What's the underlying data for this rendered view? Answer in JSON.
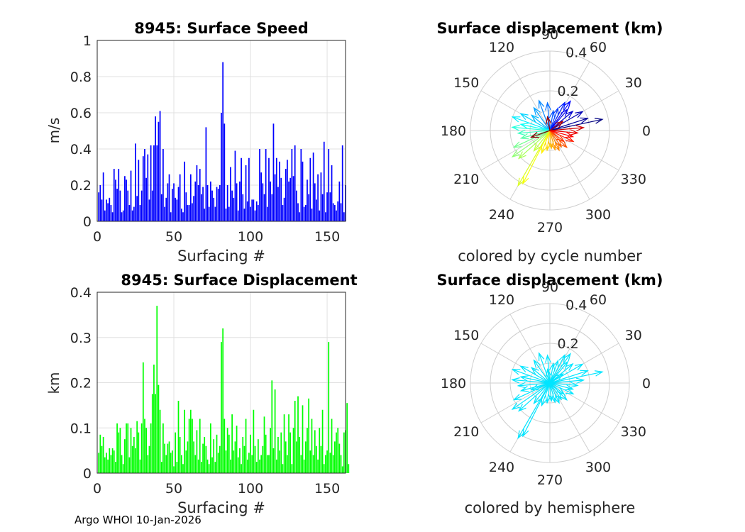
{
  "footer": "Argo WHOI 10-Jan-2026",
  "chart_data": [
    {
      "type": "bar",
      "title": "8945: Surface Speed",
      "xlabel": "Surfacing #",
      "ylabel": "m/s",
      "xlim": [
        0,
        162
      ],
      "ylim": [
        0,
        1
      ],
      "xticks": [
        "0",
        "50",
        "100",
        "150"
      ],
      "yticks": [
        "0",
        "0.2",
        "0.4",
        "0.6",
        "0.8",
        "1"
      ],
      "color": "#0000ff",
      "values": [
        0.16,
        0.2,
        0.12,
        0.27,
        0.06,
        0.12,
        0.1,
        0.13,
        0.09,
        0.05,
        0.29,
        0.23,
        0.18,
        0.29,
        0.17,
        0.05,
        0.06,
        0.25,
        0.23,
        0.17,
        0.09,
        0.28,
        0.06,
        0.08,
        0.43,
        0.14,
        0.34,
        0.09,
        0.17,
        0.36,
        0.4,
        0.24,
        0.37,
        0.12,
        0.42,
        0.17,
        0.42,
        0.58,
        0.42,
        0.55,
        0.61,
        0.15,
        0.4,
        0.08,
        0.13,
        0.21,
        0.26,
        0.05,
        0.18,
        0.21,
        0.13,
        0.12,
        0.19,
        0.26,
        0.07,
        0.05,
        0.33,
        0.16,
        0.09,
        0.09,
        0.26,
        0.1,
        0.14,
        0.22,
        0.31,
        0.2,
        0.29,
        0.15,
        0.19,
        0.07,
        0.52,
        0.2,
        0.08,
        0.22,
        0.17,
        0.13,
        0.08,
        0.19,
        0.18,
        0.2,
        0.6,
        0.88,
        0.54,
        0.07,
        0.2,
        0.08,
        0.3,
        0.17,
        0.13,
        0.39,
        0.21,
        0.06,
        0.22,
        0.35,
        0.15,
        0.07,
        0.31,
        0.11,
        0.35,
        0.08,
        0.12,
        0.12,
        0.06,
        0.11,
        0.09,
        0.4,
        0.27,
        0.21,
        0.15,
        0.4,
        0.08,
        0.35,
        0.22,
        0.15,
        0.54,
        0.26,
        0.35,
        0.19,
        0.33,
        0.24,
        0.09,
        0.13,
        0.29,
        0.34,
        0.22,
        0.24,
        0.4,
        0.25,
        0.42,
        0.17,
        0.1,
        0.05,
        0.4,
        0.33,
        0.08,
        0.09,
        0.23,
        0.15,
        0.35,
        0.07,
        0.38,
        0.21,
        0.12,
        0.26,
        0.06,
        0.27,
        0.15,
        0.44,
        0.05,
        0.16,
        0.4,
        0.16,
        0.31,
        0.1,
        0.09,
        0.06,
        0.11,
        0.22,
        0.1,
        0.42,
        0.05,
        0.2
      ]
    },
    {
      "type": "bar",
      "title": "8945: Surface Displacement",
      "xlabel": "Surfacing #",
      "ylabel": "km",
      "xlim": [
        0,
        162
      ],
      "ylim": [
        0,
        0.4
      ],
      "xticks": [
        "0",
        "50",
        "100",
        "150"
      ],
      "yticks": [
        "0",
        "0.1",
        "0.2",
        "0.3",
        "0.4"
      ],
      "color": "#00ff00",
      "values": [
        0.045,
        0.085,
        0.06,
        0.08,
        0.035,
        0.045,
        0.03,
        0.055,
        0.04,
        0.055,
        0.05,
        0.025,
        0.11,
        0.09,
        0.1,
        0.04,
        0.02,
        0.075,
        0.11,
        0.11,
        0.035,
        0.1,
        0.06,
        0.08,
        0.055,
        0.115,
        0.09,
        0.03,
        0.11,
        0.245,
        0.12,
        0.1,
        0.04,
        0.06,
        0.11,
        0.175,
        0.24,
        0.175,
        0.37,
        0.195,
        0.14,
        0.025,
        0.11,
        0.065,
        0.04,
        0.065,
        0.07,
        0.045,
        0.05,
        0.015,
        0.09,
        0.025,
        0.16,
        0.08,
        0.04,
        0.02,
        0.14,
        0.05,
        0.07,
        0.12,
        0.14,
        0.12,
        0.07,
        0.04,
        0.095,
        0.03,
        0.12,
        0.025,
        0.065,
        0.08,
        0.06,
        0.03,
        0.02,
        0.11,
        0.035,
        0.075,
        0.025,
        0.085,
        0.045,
        0.06,
        0.29,
        0.32,
        0.12,
        0.05,
        0.1,
        0.085,
        0.03,
        0.13,
        0.05,
        0.07,
        0.105,
        0.035,
        0.055,
        0.02,
        0.08,
        0.06,
        0.12,
        0.03,
        0.045,
        0.085,
        0.04,
        0.14,
        0.06,
        0.025,
        0.075,
        0.03,
        0.04,
        0.06,
        0.125,
        0.085,
        0.04,
        0.04,
        0.1,
        0.205,
        0.055,
        0.185,
        0.03,
        0.08,
        0.05,
        0.09,
        0.02,
        0.13,
        0.07,
        0.04,
        0.13,
        0.09,
        0.02,
        0.1,
        0.16,
        0.07,
        0.17,
        0.08,
        0.04,
        0.15,
        0.03,
        0.07,
        0.1,
        0.165,
        0.05,
        0.12,
        0.04,
        0.095,
        0.06,
        0.03,
        0.1,
        0.06,
        0.14,
        0.02,
        0.04,
        0.05,
        0.29,
        0.045,
        0.12,
        0.04,
        0.07,
        0.09,
        0.1,
        0.065,
        0.04,
        0.015,
        0.09,
        0.095,
        0.155,
        0.02
      ]
    },
    {
      "type": "polar",
      "title": "Surface displacement (km)",
      "caption": "colored by cycle number",
      "rmax": 0.4,
      "rticks": [
        "0.2",
        "0.4"
      ],
      "theta_ticks": [
        "0",
        "30",
        "60",
        "90",
        "120",
        "150",
        "180",
        "210",
        "240",
        "270",
        "300",
        "330"
      ],
      "color_mode": "cycle",
      "vectors": [
        {
          "angle": 12,
          "r": 0.27
        },
        {
          "angle": 18,
          "r": 0.2
        },
        {
          "angle": 30,
          "r": 0.19
        },
        {
          "angle": 40,
          "r": 0.15
        },
        {
          "angle": 50,
          "r": 0.14
        },
        {
          "angle": 55,
          "r": 0.18
        },
        {
          "angle": 62,
          "r": 0.16
        },
        {
          "angle": 70,
          "r": 0.12
        },
        {
          "angle": 80,
          "r": 0.1
        },
        {
          "angle": 95,
          "r": 0.14
        },
        {
          "angle": 110,
          "r": 0.16
        },
        {
          "angle": 125,
          "r": 0.14
        },
        {
          "angle": 140,
          "r": 0.12
        },
        {
          "angle": 150,
          "r": 0.17
        },
        {
          "angle": 160,
          "r": 0.2
        },
        {
          "angle": 168,
          "r": 0.15
        },
        {
          "angle": 175,
          "r": 0.19
        },
        {
          "angle": 185,
          "r": 0.16
        },
        {
          "angle": 195,
          "r": 0.15
        },
        {
          "angle": 205,
          "r": 0.2
        },
        {
          "angle": 215,
          "r": 0.23
        },
        {
          "angle": 222,
          "r": 0.21
        },
        {
          "angle": 232,
          "r": 0.13
        },
        {
          "angle": 240,
          "r": 0.32
        },
        {
          "angle": 243,
          "r": 0.3
        },
        {
          "angle": 250,
          "r": 0.12
        },
        {
          "angle": 262,
          "r": 0.1
        },
        {
          "angle": 275,
          "r": 0.09
        },
        {
          "angle": 285,
          "r": 0.1
        },
        {
          "angle": 295,
          "r": 0.11
        },
        {
          "angle": 305,
          "r": 0.1
        },
        {
          "angle": 315,
          "r": 0.12
        },
        {
          "angle": 322,
          "r": 0.09
        },
        {
          "angle": 335,
          "r": 0.13
        },
        {
          "angle": 345,
          "r": 0.12
        },
        {
          "angle": 355,
          "r": 0.14
        },
        {
          "angle": 5,
          "r": 0.17
        },
        {
          "angle": 35,
          "r": 0.08
        },
        {
          "angle": 100,
          "r": 0.07
        },
        {
          "angle": 200,
          "r": 0.1
        }
      ]
    },
    {
      "type": "polar",
      "title": "Surface displacement (km)",
      "caption": "colored by hemisphere",
      "rmax": 0.4,
      "rticks": [
        "0.2",
        "0.4"
      ],
      "theta_ticks": [
        "0",
        "30",
        "60",
        "90",
        "120",
        "150",
        "180",
        "210",
        "240",
        "270",
        "300",
        "330"
      ],
      "color_mode": "single",
      "color": "#00e5ff",
      "vectors": [
        {
          "angle": 12,
          "r": 0.27
        },
        {
          "angle": 18,
          "r": 0.2
        },
        {
          "angle": 30,
          "r": 0.19
        },
        {
          "angle": 40,
          "r": 0.15
        },
        {
          "angle": 50,
          "r": 0.14
        },
        {
          "angle": 55,
          "r": 0.18
        },
        {
          "angle": 62,
          "r": 0.16
        },
        {
          "angle": 70,
          "r": 0.12
        },
        {
          "angle": 80,
          "r": 0.1
        },
        {
          "angle": 95,
          "r": 0.14
        },
        {
          "angle": 110,
          "r": 0.16
        },
        {
          "angle": 125,
          "r": 0.14
        },
        {
          "angle": 140,
          "r": 0.12
        },
        {
          "angle": 150,
          "r": 0.17
        },
        {
          "angle": 160,
          "r": 0.2
        },
        {
          "angle": 168,
          "r": 0.15
        },
        {
          "angle": 175,
          "r": 0.19
        },
        {
          "angle": 185,
          "r": 0.16
        },
        {
          "angle": 195,
          "r": 0.15
        },
        {
          "angle": 205,
          "r": 0.2
        },
        {
          "angle": 215,
          "r": 0.23
        },
        {
          "angle": 222,
          "r": 0.21
        },
        {
          "angle": 232,
          "r": 0.13
        },
        {
          "angle": 240,
          "r": 0.32
        },
        {
          "angle": 243,
          "r": 0.3
        },
        {
          "angle": 250,
          "r": 0.12
        },
        {
          "angle": 262,
          "r": 0.1
        },
        {
          "angle": 275,
          "r": 0.09
        },
        {
          "angle": 285,
          "r": 0.1
        },
        {
          "angle": 295,
          "r": 0.11
        },
        {
          "angle": 305,
          "r": 0.1
        },
        {
          "angle": 315,
          "r": 0.12
        },
        {
          "angle": 322,
          "r": 0.09
        },
        {
          "angle": 335,
          "r": 0.13
        },
        {
          "angle": 345,
          "r": 0.12
        },
        {
          "angle": 355,
          "r": 0.14
        },
        {
          "angle": 5,
          "r": 0.17
        },
        {
          "angle": 35,
          "r": 0.08
        },
        {
          "angle": 100,
          "r": 0.07
        },
        {
          "angle": 200,
          "r": 0.1
        }
      ]
    }
  ]
}
